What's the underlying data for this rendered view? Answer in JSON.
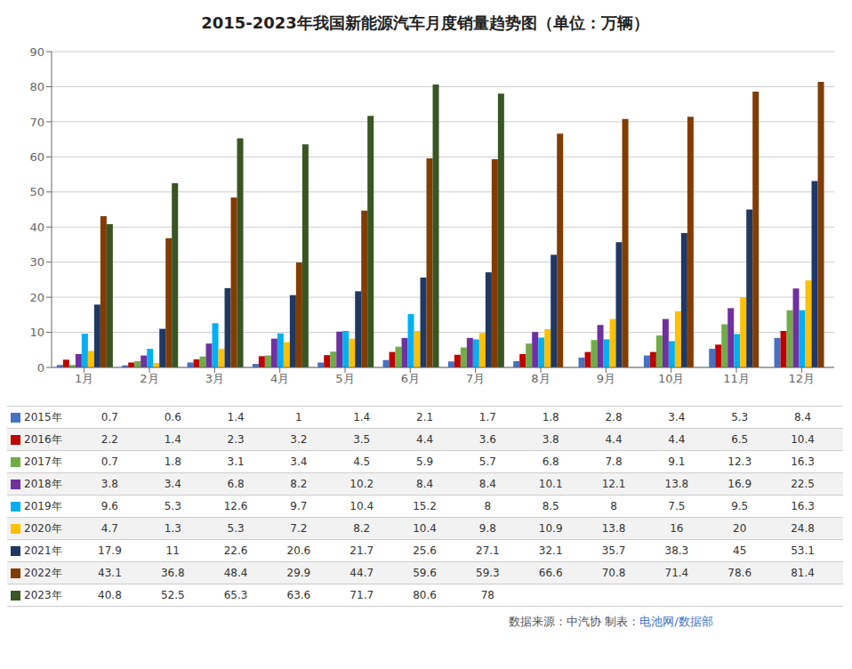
{
  "chart_data": {
    "type": "bar",
    "title": "2015-2023年我国新能源汽车月度销量趋势图（单位：万辆）",
    "categories": [
      "1月",
      "2月",
      "3月",
      "4月",
      "5月",
      "6月",
      "7月",
      "8月",
      "9月",
      "10月",
      "11月",
      "12月"
    ],
    "series": [
      {
        "name": "2015年",
        "color": "#4472C4",
        "values": [
          0.7,
          0.6,
          1.4,
          1.0,
          1.4,
          2.1,
          1.7,
          1.8,
          2.8,
          3.4,
          5.3,
          8.4
        ]
      },
      {
        "name": "2016年",
        "color": "#C00000",
        "values": [
          2.2,
          1.4,
          2.3,
          3.2,
          3.5,
          4.4,
          3.6,
          3.8,
          4.4,
          4.4,
          6.5,
          10.4
        ]
      },
      {
        "name": "2017年",
        "color": "#70AD47",
        "values": [
          0.7,
          1.8,
          3.1,
          3.4,
          4.5,
          5.9,
          5.7,
          6.8,
          7.8,
          9.1,
          12.3,
          16.3
        ]
      },
      {
        "name": "2018年",
        "color": "#7030A0",
        "values": [
          3.8,
          3.4,
          6.8,
          8.2,
          10.2,
          8.4,
          8.4,
          10.1,
          12.1,
          13.8,
          16.9,
          22.5
        ]
      },
      {
        "name": "2019年",
        "color": "#00B0F0",
        "values": [
          9.6,
          5.3,
          12.6,
          9.7,
          10.4,
          15.2,
          8.0,
          8.5,
          8.0,
          7.5,
          9.5,
          16.3
        ]
      },
      {
        "name": "2020年",
        "color": "#FFC000",
        "values": [
          4.7,
          1.3,
          5.3,
          7.2,
          8.2,
          10.4,
          9.8,
          10.9,
          13.8,
          16.0,
          20.0,
          24.8
        ]
      },
      {
        "name": "2021年",
        "color": "#1F3864",
        "values": [
          17.9,
          11.0,
          22.6,
          20.6,
          21.7,
          25.6,
          27.1,
          32.1,
          35.7,
          38.3,
          45.0,
          53.1
        ]
      },
      {
        "name": "2022年",
        "color": "#833C00",
        "values": [
          43.1,
          36.8,
          48.4,
          29.9,
          44.7,
          59.6,
          59.3,
          66.6,
          70.8,
          71.4,
          78.6,
          81.4
        ]
      },
      {
        "name": "2023年",
        "color": "#375623",
        "values": [
          40.8,
          52.5,
          65.3,
          63.6,
          71.7,
          80.6,
          78.0,
          null,
          null,
          null,
          null,
          null
        ]
      }
    ],
    "ylim": [
      0,
      90
    ],
    "yticks": [
      0,
      10,
      20,
      30,
      40,
      50,
      60,
      70,
      80,
      90
    ],
    "grid": true,
    "legend": "bottom",
    "annotations": [
      {
        "text": "数据来源：中汽协  制表：",
        "color": "#555555"
      },
      {
        "text": "电池网/数据部",
        "color": "#4472C4"
      }
    ]
  }
}
